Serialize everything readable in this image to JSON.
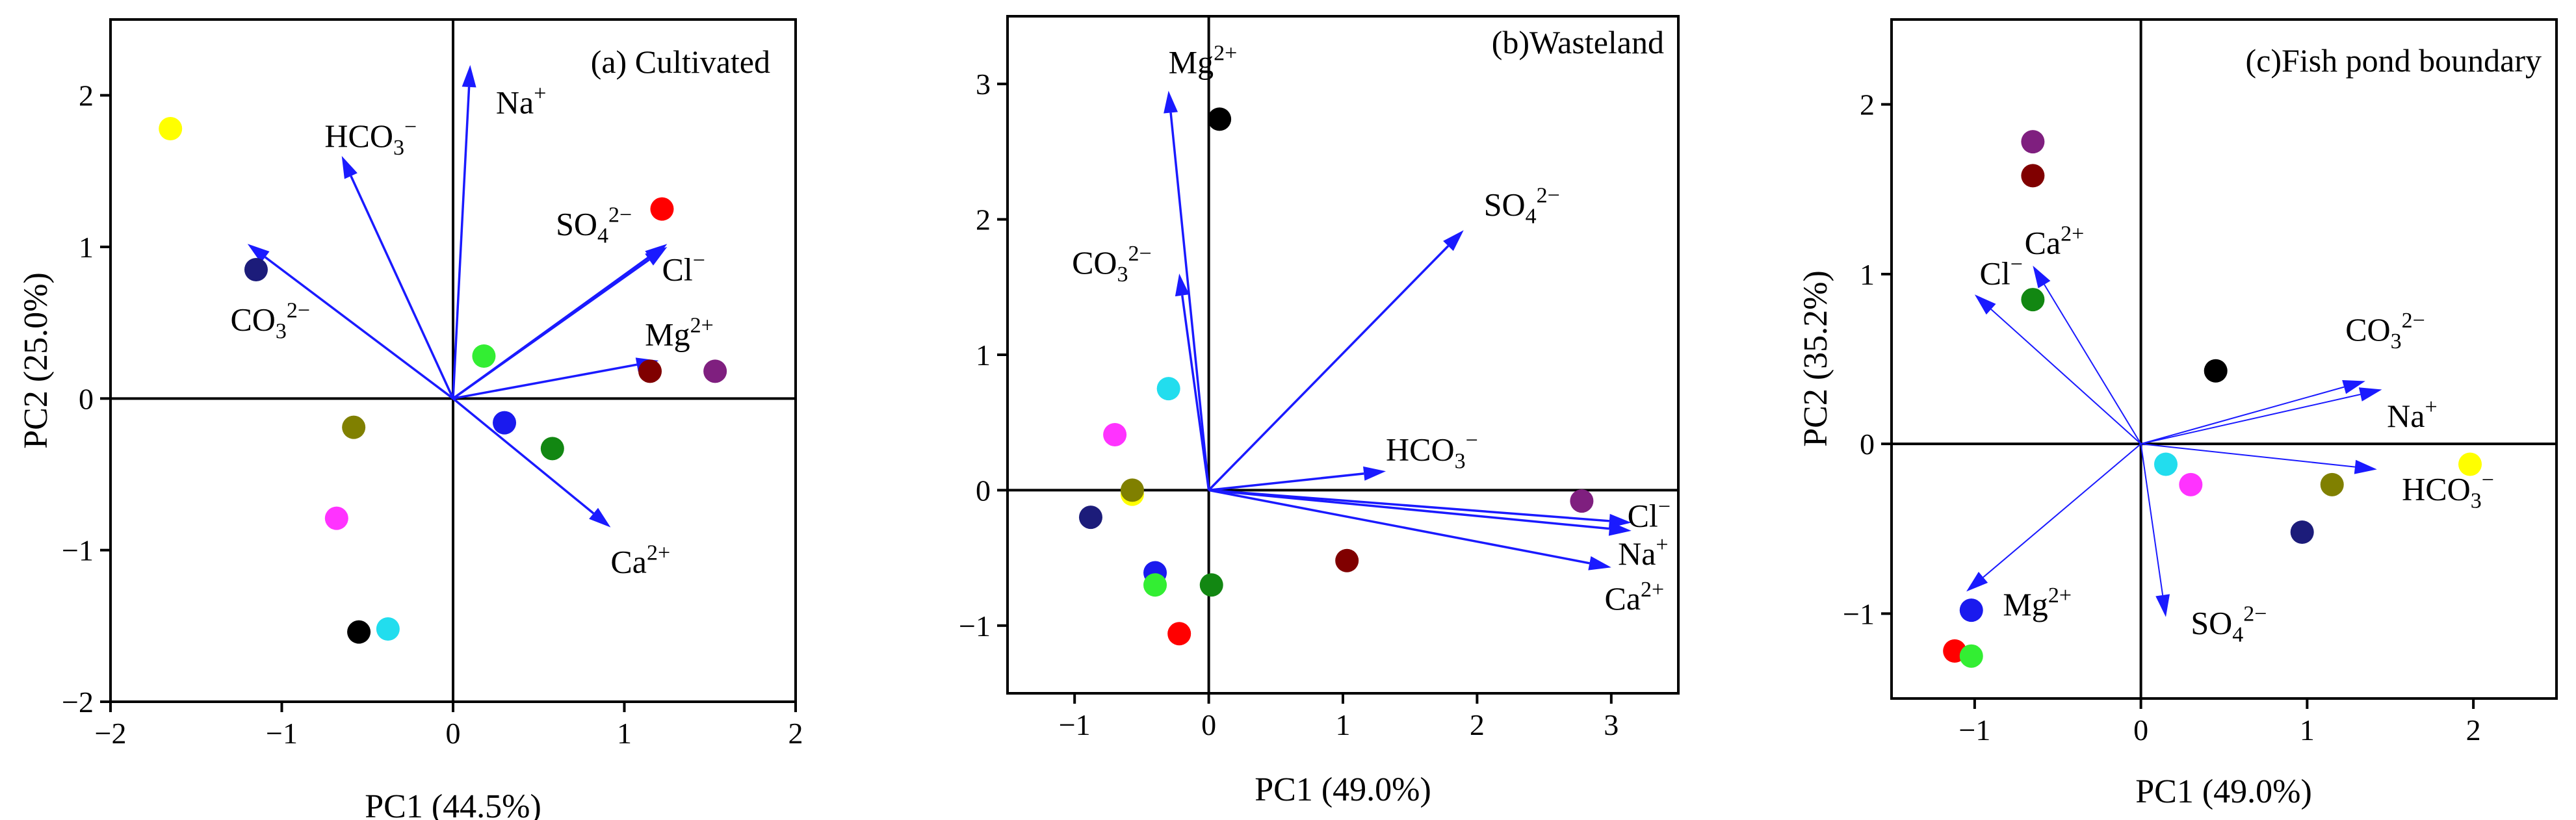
{
  "figure": {
    "background": "#ffffff",
    "vector_color": "#1a1aff"
  },
  "chart_data": [
    {
      "type": "scatter",
      "subtype": "pca-biplot",
      "title": "(a) Cultivated",
      "xlabel": "PC1 (44.5%)",
      "ylabel": "PC2 (25.0%)",
      "xlim": [
        -2,
        2
      ],
      "ylim": [
        -2,
        2.5
      ],
      "xticks": [
        -2,
        -1,
        0,
        1,
        2
      ],
      "yticks": [
        -2,
        -1,
        0,
        1,
        2
      ],
      "vector_style": "bold",
      "vectors": [
        {
          "name": "Na",
          "charge": "+",
          "x": 0.1,
          "y": 2.2,
          "lx": 0.25,
          "ly": 1.88
        },
        {
          "name": "HCO",
          "sub": "3",
          "charge": "−",
          "x": -0.65,
          "y": 1.6,
          "lx": -0.75,
          "ly": 1.66
        },
        {
          "name": "SO",
          "sub": "4",
          "charge": "2−",
          "x": 1.25,
          "y": 1.0,
          "lx": 0.6,
          "ly": 1.08
        },
        {
          "name": "Cl",
          "charge": "−",
          "x": 1.25,
          "y": 1.02,
          "lx": 1.22,
          "ly": 0.78
        },
        {
          "name": "Mg",
          "charge": "2+",
          "x": 1.2,
          "y": 0.25,
          "lx": 1.12,
          "ly": 0.35
        },
        {
          "name": "CO",
          "sub": "3",
          "charge": "2−",
          "x": -1.2,
          "y": 1.02,
          "lx": -1.3,
          "ly": 0.45
        },
        {
          "name": "Ca",
          "charge": "2+",
          "x": 0.92,
          "y": -0.85,
          "lx": 0.92,
          "ly": -1.15
        }
      ],
      "points": [
        {
          "x": -1.65,
          "y": 1.78,
          "color": "#ffff00"
        },
        {
          "x": -1.15,
          "y": 0.85,
          "color": "#1c1c7a"
        },
        {
          "x": 1.22,
          "y": 1.25,
          "color": "#ff0000"
        },
        {
          "x": 0.18,
          "y": 0.28,
          "color": "#33ee33"
        },
        {
          "x": 1.15,
          "y": 0.18,
          "color": "#800000"
        },
        {
          "x": 1.53,
          "y": 0.18,
          "color": "#7f1f7f"
        },
        {
          "x": 0.3,
          "y": -0.16,
          "color": "#1a1aee"
        },
        {
          "x": 0.58,
          "y": -0.33,
          "color": "#128712"
        },
        {
          "x": -0.58,
          "y": -0.19,
          "color": "#808000"
        },
        {
          "x": -0.68,
          "y": -0.79,
          "color": "#ff33ff"
        },
        {
          "x": -0.55,
          "y": -1.54,
          "color": "#000000"
        },
        {
          "x": -0.38,
          "y": -1.52,
          "color": "#22ddee"
        }
      ]
    },
    {
      "type": "scatter",
      "subtype": "pca-biplot",
      "title": "(b)Wasteland",
      "xlabel": "PC1 (49.0%)",
      "ylabel": "",
      "xlim": [
        -1.5,
        3.5
      ],
      "ylim": [
        -1.5,
        3.5
      ],
      "xticks": [
        -1,
        0,
        1,
        2,
        3
      ],
      "yticks": [
        -1,
        0,
        1,
        2,
        3
      ],
      "vector_style": "bold",
      "vectors": [
        {
          "name": "Mg",
          "charge": "2+",
          "x": -0.3,
          "y": 2.95,
          "lx": -0.3,
          "ly": 3.08
        },
        {
          "name": "CO",
          "sub": "3",
          "charge": "2−",
          "x": -0.22,
          "y": 1.6,
          "lx": -1.02,
          "ly": 1.6
        },
        {
          "name": "SO",
          "sub": "4",
          "charge": "2−",
          "x": 1.9,
          "y": 1.92,
          "lx": 2.05,
          "ly": 2.03
        },
        {
          "name": "HCO",
          "sub": "3",
          "charge": "−",
          "x": 1.32,
          "y": 0.14,
          "lx": 1.32,
          "ly": 0.22
        },
        {
          "name": "Cl",
          "charge": "−",
          "x": 3.15,
          "y": -0.24,
          "lx": 3.12,
          "ly": -0.27
        },
        {
          "name": "Na",
          "charge": "+",
          "x": 3.15,
          "y": -0.3,
          "lx": 3.05,
          "ly": -0.55
        },
        {
          "name": "Ca",
          "charge": "2+",
          "x": 3.0,
          "y": -0.57,
          "lx": 2.95,
          "ly": -0.88
        }
      ],
      "points": [
        {
          "x": 0.08,
          "y": 2.74,
          "color": "#000000"
        },
        {
          "x": -0.3,
          "y": 0.75,
          "color": "#22ddee"
        },
        {
          "x": -0.7,
          "y": 0.41,
          "color": "#ff33ff"
        },
        {
          "x": -0.57,
          "y": -0.03,
          "color": "#ffff00"
        },
        {
          "x": -0.57,
          "y": 0.0,
          "color": "#808000"
        },
        {
          "x": -0.88,
          "y": -0.2,
          "color": "#1c1c7a"
        },
        {
          "x": -0.4,
          "y": -0.61,
          "color": "#1a1aee"
        },
        {
          "x": -0.4,
          "y": -0.7,
          "color": "#33ee33"
        },
        {
          "x": 0.02,
          "y": -0.7,
          "color": "#128712"
        },
        {
          "x": -0.22,
          "y": -1.06,
          "color": "#ff0000"
        },
        {
          "x": 1.03,
          "y": -0.52,
          "color": "#800000"
        },
        {
          "x": 2.78,
          "y": -0.08,
          "color": "#7f1f7f"
        }
      ]
    },
    {
      "type": "scatter",
      "subtype": "pca-biplot",
      "title": "(c)Fish pond boundary",
      "xlabel": "PC1 (49.0%)",
      "ylabel": "PC2 (35.2%)",
      "xlim": [
        -1.5,
        2.5
      ],
      "ylim": [
        -1.5,
        2.5
      ],
      "xticks": [
        -1,
        0,
        1,
        2
      ],
      "yticks": [
        -1,
        0,
        1,
        2
      ],
      "vector_style": "thin",
      "vectors": [
        {
          "name": "Ca",
          "charge": "2+",
          "x": -0.65,
          "y": 1.05,
          "lx": -0.7,
          "ly": 1.12
        },
        {
          "name": "Cl",
          "charge": "−",
          "x": -1.0,
          "y": 0.88,
          "lx": -0.97,
          "ly": 0.94
        },
        {
          "name": "CO",
          "sub": "3",
          "charge": "2−",
          "x": 1.35,
          "y": 0.37,
          "lx": 1.23,
          "ly": 0.61
        },
        {
          "name": "Na",
          "charge": "+",
          "x": 1.45,
          "y": 0.32,
          "lx": 1.48,
          "ly": 0.1
        },
        {
          "name": "HCO",
          "sub": "3",
          "charge": "−",
          "x": 1.42,
          "y": -0.15,
          "lx": 1.57,
          "ly": -0.33
        },
        {
          "name": "SO",
          "sub": "4",
          "charge": "2−",
          "x": 0.15,
          "y": -1.02,
          "lx": 0.3,
          "ly": -1.12
        },
        {
          "name": "Mg",
          "charge": "2+",
          "x": -1.05,
          "y": -0.87,
          "lx": -0.83,
          "ly": -1.01
        }
      ],
      "points": [
        {
          "x": -0.65,
          "y": 1.78,
          "color": "#7f1f7f"
        },
        {
          "x": -0.65,
          "y": 1.58,
          "color": "#800000"
        },
        {
          "x": -0.65,
          "y": 0.85,
          "color": "#128712"
        },
        {
          "x": 0.45,
          "y": 0.43,
          "color": "#000000"
        },
        {
          "x": 0.15,
          "y": -0.12,
          "color": "#22ddee"
        },
        {
          "x": 0.3,
          "y": -0.24,
          "color": "#ff33ff"
        },
        {
          "x": 1.98,
          "y": -0.12,
          "color": "#ffff00"
        },
        {
          "x": 1.15,
          "y": -0.24,
          "color": "#808000"
        },
        {
          "x": 0.97,
          "y": -0.52,
          "color": "#1c1c7a"
        },
        {
          "x": -1.02,
          "y": -0.98,
          "color": "#1a1aee"
        },
        {
          "x": -1.12,
          "y": -1.22,
          "color": "#ff0000"
        },
        {
          "x": -1.02,
          "y": -1.25,
          "color": "#33ee33"
        }
      ]
    }
  ]
}
